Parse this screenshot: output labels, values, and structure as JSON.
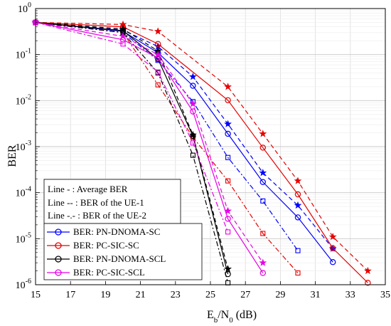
{
  "chart_data": {
    "type": "line",
    "xlabel": "E_b/N_0 (dB)",
    "ylabel": "BER",
    "xlim": [
      15,
      35
    ],
    "ylim_log10": [
      -6,
      0
    ],
    "y_scale": "log",
    "grid": true,
    "x_ticks": [
      "15",
      "17",
      "19",
      "21",
      "23",
      "25",
      "27",
      "29",
      "31",
      "33",
      "35"
    ],
    "y_ticks": [
      {
        "base": "10",
        "exp": "0"
      },
      {
        "base": "10",
        "exp": "-1"
      },
      {
        "base": "10",
        "exp": "-2"
      },
      {
        "base": "10",
        "exp": "-3"
      },
      {
        "base": "10",
        "exp": "-4"
      },
      {
        "base": "10",
        "exp": "-5"
      },
      {
        "base": "10",
        "exp": "-6"
      }
    ],
    "notes": [
      "Line - : Average BER",
      "Line -- :  BER of the UE-1",
      "Line -.- : BER of the UE-2"
    ],
    "legend_position": "bottom-left",
    "legend": [
      {
        "label": "BER: PN-DNOMA-SC",
        "color": "#0000ff"
      },
      {
        "label": "BER: PC-SIC-SC",
        "color": "#e60000"
      },
      {
        "label": "BER: PN-DNOMA-SCL",
        "color": "#000000"
      },
      {
        "label": "BER: PC-SIC-SCL",
        "color": "#e600e6"
      }
    ],
    "series": [
      {
        "color": "#0000ff",
        "dash": "solid",
        "marker": "circle",
        "x": [
          15,
          20,
          22,
          24,
          26,
          28,
          30,
          32
        ],
        "y": [
          0.5,
          0.32,
          0.11,
          0.021,
          0.0019,
          0.00017,
          2.9e-05,
          3.1e-06
        ]
      },
      {
        "color": "#0000ff",
        "dash": "dashed",
        "marker": "star",
        "x": [
          15,
          20,
          22,
          24,
          26,
          28,
          30,
          32
        ],
        "y": [
          0.5,
          0.34,
          0.15,
          0.033,
          0.0031,
          0.00027,
          5.3e-05,
          6.1e-06
        ]
      },
      {
        "color": "#0000ff",
        "dash": "dashdot",
        "marker": "square",
        "x": [
          15,
          20,
          22,
          24,
          26,
          28,
          30
        ],
        "y": [
          0.5,
          0.3,
          0.075,
          0.0095,
          0.00058,
          6.6e-05,
          5.5e-06
        ]
      },
      {
        "color": "#e60000",
        "dash": "solid",
        "marker": "circle",
        "x": [
          15,
          20,
          22,
          26,
          28,
          30,
          32,
          34
        ],
        "y": [
          0.5,
          0.4,
          0.17,
          0.0102,
          0.00095,
          9.2e-05,
          6.2e-06,
          1.1e-06
        ]
      },
      {
        "color": "#e60000",
        "dash": "dashed",
        "marker": "star",
        "x": [
          15,
          20,
          22,
          26,
          28,
          30,
          32,
          34
        ],
        "y": [
          0.5,
          0.45,
          0.32,
          0.02,
          0.0019,
          0.00018,
          1.1e-05,
          2e-06
        ]
      },
      {
        "color": "#e60000",
        "dash": "dashdot",
        "marker": "square",
        "x": [
          15,
          20,
          22,
          24,
          26,
          28,
          30
        ],
        "y": [
          0.5,
          0.3,
          0.022,
          0.0016,
          0.00018,
          1.3e-05,
          1.8e-06
        ]
      },
      {
        "color": "#000000",
        "dash": "solid",
        "marker": "circle",
        "x": [
          15,
          20,
          22,
          24,
          26
        ],
        "y": [
          0.5,
          0.33,
          0.08,
          0.0017,
          1.7e-06
        ]
      },
      {
        "color": "#000000",
        "dash": "dashed",
        "marker": "star",
        "x": [
          15,
          20,
          22,
          24,
          26
        ],
        "y": [
          0.5,
          0.36,
          0.12,
          0.0018,
          2.2e-06
        ]
      },
      {
        "color": "#000000",
        "dash": "dashdot",
        "marker": "square",
        "x": [
          15,
          20,
          22,
          24,
          26
        ],
        "y": [
          0.5,
          0.3,
          0.04,
          0.00065,
          1.1e-06
        ]
      },
      {
        "color": "#e600e6",
        "dash": "solid",
        "marker": "circle",
        "x": [
          15,
          20,
          22,
          24,
          26,
          28
        ],
        "y": [
          0.5,
          0.21,
          0.085,
          0.0058,
          2.7e-05,
          1.8e-06
        ]
      },
      {
        "color": "#e600e6",
        "dash": "dashed",
        "marker": "star",
        "x": [
          15,
          20,
          22,
          24,
          26,
          28
        ],
        "y": [
          0.5,
          0.25,
          0.1,
          0.0085,
          4e-05,
          3e-06
        ]
      },
      {
        "color": "#e600e6",
        "dash": "dashdot",
        "marker": "square",
        "x": [
          15,
          20,
          22,
          24,
          26
        ],
        "y": [
          0.5,
          0.17,
          0.042,
          0.0012,
          1.4e-05
        ]
      }
    ]
  }
}
